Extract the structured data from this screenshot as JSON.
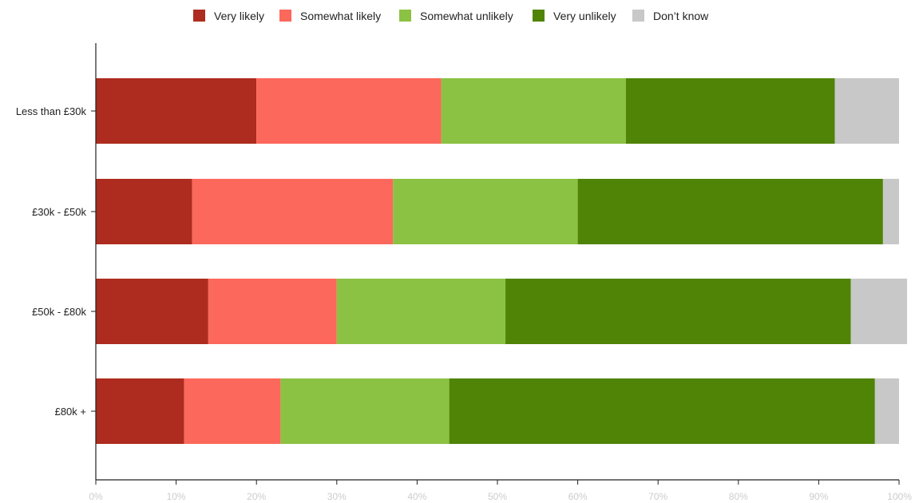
{
  "chart_data": {
    "type": "bar",
    "orientation": "horizontal",
    "stacked": true,
    "categories": [
      "Less than £30k",
      "£30k - £50k",
      "£50k - £80k",
      "£80k +"
    ],
    "series": [
      {
        "name": "Very likely",
        "color": "#ad2c1f",
        "values": [
          20,
          12,
          14,
          11
        ]
      },
      {
        "name": "Somewhat likely",
        "color": "#fc685b",
        "values": [
          23,
          25,
          16,
          12
        ]
      },
      {
        "name": "Somewhat unlikely",
        "color": "#8bc243",
        "values": [
          23,
          23,
          21,
          21
        ]
      },
      {
        "name": "Very unlikely",
        "color": "#4f8406",
        "values": [
          26,
          38,
          43,
          53
        ]
      },
      {
        "name": "Don’t know",
        "color": "#c8c8c8",
        "values": [
          8,
          2,
          7,
          3
        ]
      }
    ],
    "xlim": [
      0,
      100
    ],
    "xticks": [
      "0%",
      "10%",
      "20%",
      "30%",
      "40%",
      "50%",
      "60%",
      "70%",
      "80%",
      "90%",
      "100%"
    ],
    "legend_position": "top-center",
    "grid": false
  }
}
